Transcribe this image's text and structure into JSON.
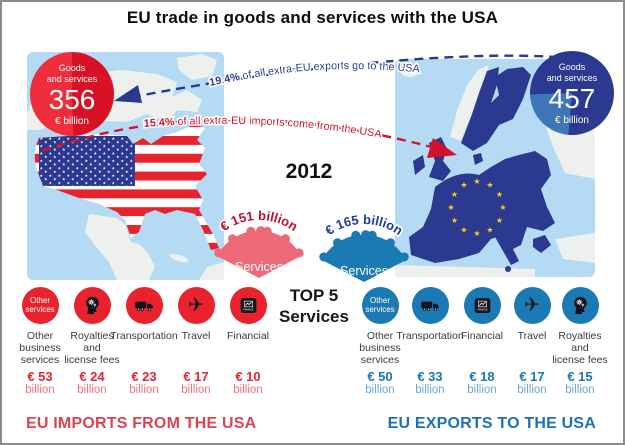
{
  "title": "EU trade in goods and services with the USA",
  "year": "2012",
  "colors": {
    "red": "#e8232d",
    "dark_blue": "#2b3990",
    "panel_blue": "#b5daf3",
    "icon_blue": "#1b79b3",
    "fan_red": "#ed6b79",
    "fan_blue": "#1b79b3",
    "banner_red": "#dc4251",
    "banner_blue": "#1c70b5",
    "star_yellow": "#f5d216"
  },
  "arrows": {
    "exports_pct": "19.4%",
    "exports_rest": " of all extra-EU exports go to the USA",
    "imports_pct": "15.4%",
    "imports_rest": " of all extra-EU imports come from the USA"
  },
  "top5": {
    "line1": "TOP 5",
    "line2": "Services"
  },
  "icons": {
    "finance_label": "FINANCE"
  },
  "imports": {
    "circle": {
      "label": "Goods\nand services",
      "value": "356",
      "unit": "€ billion"
    },
    "services_badge": {
      "value_text": "€ 151 billion",
      "label": "Services"
    },
    "banner": "EU IMPORTS FROM THE USA",
    "items": [
      {
        "icon": "other-services",
        "icon_text": "Other\nservices",
        "label": "Other\nbusiness\nservices",
        "value": "€ 53",
        "unit": "billion"
      },
      {
        "icon": "royalties",
        "label": "Royalties\nand\nlicense fees",
        "value": "€ 24",
        "unit": "billion"
      },
      {
        "icon": "transportation",
        "label": "Transportation",
        "value": "€ 23",
        "unit": "billion"
      },
      {
        "icon": "travel",
        "label": "Travel",
        "value": "€ 17",
        "unit": "billion"
      },
      {
        "icon": "financial",
        "label": "Financial",
        "value": "€ 10",
        "unit": "billion"
      }
    ]
  },
  "exports": {
    "circle": {
      "label": "Goods\nand services",
      "value": "457",
      "unit": "€ billion"
    },
    "services_badge": {
      "value_text": "€ 165 billion",
      "label": "Services"
    },
    "banner": "EU EXPORTS TO THE USA",
    "items": [
      {
        "icon": "other-services",
        "icon_text": "Other\nservices",
        "label": "Other\nbusiness\nservices",
        "value": "€ 50",
        "unit": "billion"
      },
      {
        "icon": "transportation",
        "label": "Transportation",
        "value": "€ 33",
        "unit": "billion"
      },
      {
        "icon": "financial",
        "label": "Financial",
        "value": "€ 18",
        "unit": "billion"
      },
      {
        "icon": "travel",
        "label": "Travel",
        "value": "€ 17",
        "unit": "billion"
      },
      {
        "icon": "royalties",
        "label": "Royalties\nand\nlicense fees",
        "value": "€ 15",
        "unit": "billion"
      }
    ]
  }
}
